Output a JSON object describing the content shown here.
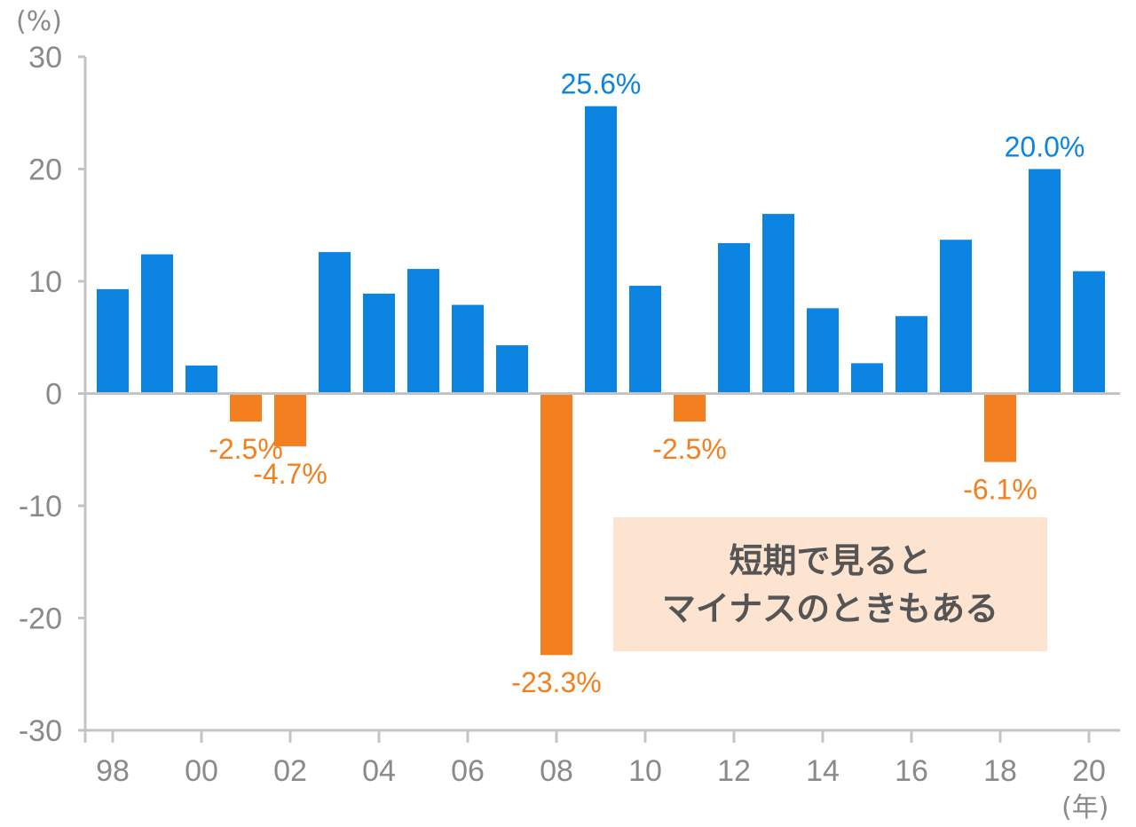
{
  "chart_data": {
    "type": "bar",
    "title": "",
    "y_unit": "(%)",
    "x_unit": "(年)",
    "ylim": [
      -30,
      30
    ],
    "yticks": [
      30,
      20,
      10,
      0,
      -10,
      -20,
      -30
    ],
    "ytick_labels": [
      "30",
      "20",
      "10",
      "0",
      "-10",
      "-20",
      "-30"
    ],
    "x_tick_labels": [
      "98",
      "00",
      "02",
      "04",
      "06",
      "08",
      "10",
      "12",
      "14",
      "16",
      "18",
      "20"
    ],
    "categories": [
      "98",
      "99",
      "00",
      "01",
      "02",
      "03",
      "04",
      "05",
      "06",
      "07",
      "08",
      "09",
      "10",
      "11",
      "12",
      "13",
      "14",
      "15",
      "16",
      "17",
      "18",
      "19",
      "20"
    ],
    "values": [
      9.3,
      12.4,
      2.5,
      -2.5,
      -4.7,
      12.6,
      8.9,
      11.1,
      7.9,
      4.3,
      -23.3,
      25.6,
      9.6,
      -2.5,
      13.4,
      16.0,
      7.6,
      2.7,
      6.9,
      13.7,
      -6.1,
      20.0,
      10.9
    ],
    "data_labels": [
      {
        "category": "01",
        "text": "-2.5%"
      },
      {
        "category": "02",
        "text": "-4.7%"
      },
      {
        "category": "08",
        "text": "-23.3%"
      },
      {
        "category": "09",
        "text": "25.6%"
      },
      {
        "category": "11",
        "text": "-2.5%"
      },
      {
        "category": "18",
        "text": "-6.1%"
      },
      {
        "category": "19",
        "text": "20.0%"
      }
    ],
    "colors": {
      "positive": "#0b84e2",
      "negative": "#f47f1f",
      "axis": "#c4c4c4",
      "tick_text": "#8a8a8a",
      "callout_bg": "#fde4d0",
      "callout_text": "#555555"
    },
    "grid": false,
    "legend": "none"
  },
  "callout": {
    "line1": "短期で見ると",
    "line2": "マイナスのときもある"
  }
}
